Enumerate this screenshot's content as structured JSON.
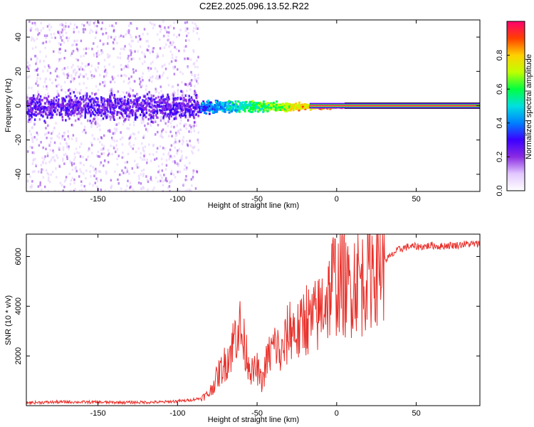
{
  "title": "C2E2.2025.096.13.52.R22",
  "chart_data": [
    {
      "type": "heatmap",
      "xlabel": "Height of straight line (km)",
      "ylabel": "Frequency (Hz)",
      "xlim": [
        -195,
        90
      ],
      "ylim": [
        -50,
        50
      ],
      "xticks": [
        -150,
        -100,
        -50,
        0,
        50
      ],
      "yticks": [
        -40,
        -20,
        0,
        20,
        40
      ],
      "colorbar": {
        "label": "Normalized spectral amplitude",
        "range": [
          0,
          1
        ],
        "ticks": [
          0.0,
          0.2,
          0.4,
          0.6,
          0.8
        ],
        "colormap": [
          "#ffffff",
          "#e2c8ff",
          "#8a2be2",
          "#3b00ff",
          "#0080ff",
          "#00e0e0",
          "#00ff40",
          "#c0ff00",
          "#ffd000",
          "#ff4000",
          "#ff0070"
        ]
      },
      "features": {
        "noise_region_x": [
          -195,
          -87
        ],
        "narrowing_region_x": [
          -87,
          5
        ],
        "stable_signal_x": [
          5,
          90
        ],
        "signal_frequency_hz": 0
      }
    },
    {
      "type": "line",
      "xlabel": "Height of straight line (km)",
      "ylabel": "SNR (10 * v/v)",
      "xlim": [
        -195,
        90
      ],
      "ylim": [
        0,
        6900
      ],
      "xticks": [
        -150,
        -100,
        -50,
        0,
        50
      ],
      "yticks": [
        2000,
        4000,
        6000
      ],
      "color": "#e8302a",
      "series": [
        {
          "x": [
            -195,
            -170,
            -140,
            -110,
            -95,
            -85,
            -80,
            -77,
            -74,
            -71,
            -68,
            -65,
            -62,
            -59,
            -56,
            -53,
            -50,
            -47,
            -44,
            -41,
            -38,
            -35,
            -32,
            -29,
            -26,
            -23,
            -20,
            -17,
            -14,
            -11,
            -8,
            -5,
            -2,
            1,
            4,
            7,
            10,
            13,
            16,
            19,
            22,
            25,
            28,
            31,
            34,
            37,
            40,
            45,
            50,
            55,
            60,
            65,
            70,
            75,
            80,
            85,
            90
          ],
          "y": [
            120,
            150,
            130,
            140,
            200,
            300,
            500,
            900,
            1300,
            1600,
            2000,
            2500,
            3400,
            2600,
            2000,
            1300,
            1500,
            900,
            1800,
            2200,
            2500,
            1900,
            2600,
            3200,
            3000,
            2900,
            3700,
            3300,
            3500,
            3700,
            4300,
            4400,
            5100,
            4900,
            5000,
            4600,
            5000,
            5300,
            4900,
            5500,
            5600,
            5800,
            5900,
            5900,
            6000,
            6200,
            6300,
            6400,
            6400,
            6400,
            6450,
            6400,
            6450,
            6450,
            6500,
            6500,
            6500
          ]
        }
      ]
    }
  ]
}
